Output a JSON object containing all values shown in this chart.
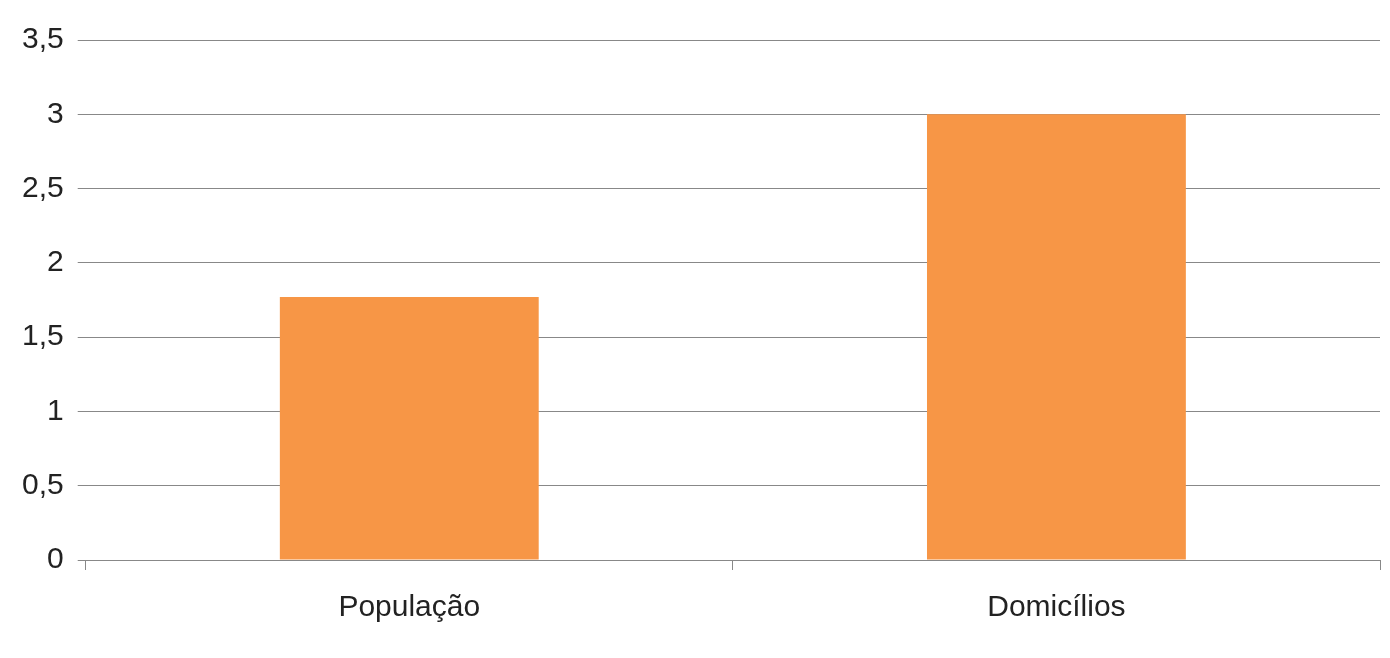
{
  "chart_data": {
    "type": "bar",
    "categories": [
      "População",
      "Domicílios"
    ],
    "values": [
      1.77,
      3.0
    ],
    "color": "#f79646",
    "ylim": [
      0,
      3.5
    ],
    "yticks": [
      {
        "value": 0,
        "label": "0"
      },
      {
        "value": 0.5,
        "label": "0,5"
      },
      {
        "value": 1,
        "label": "1"
      },
      {
        "value": 1.5,
        "label": "1,5"
      },
      {
        "value": 2,
        "label": "2"
      },
      {
        "value": 2.5,
        "label": "2,5"
      },
      {
        "value": 3,
        "label": "3"
      },
      {
        "value": 3.5,
        "label": "3,5"
      }
    ],
    "grid": "y",
    "legend": false
  }
}
